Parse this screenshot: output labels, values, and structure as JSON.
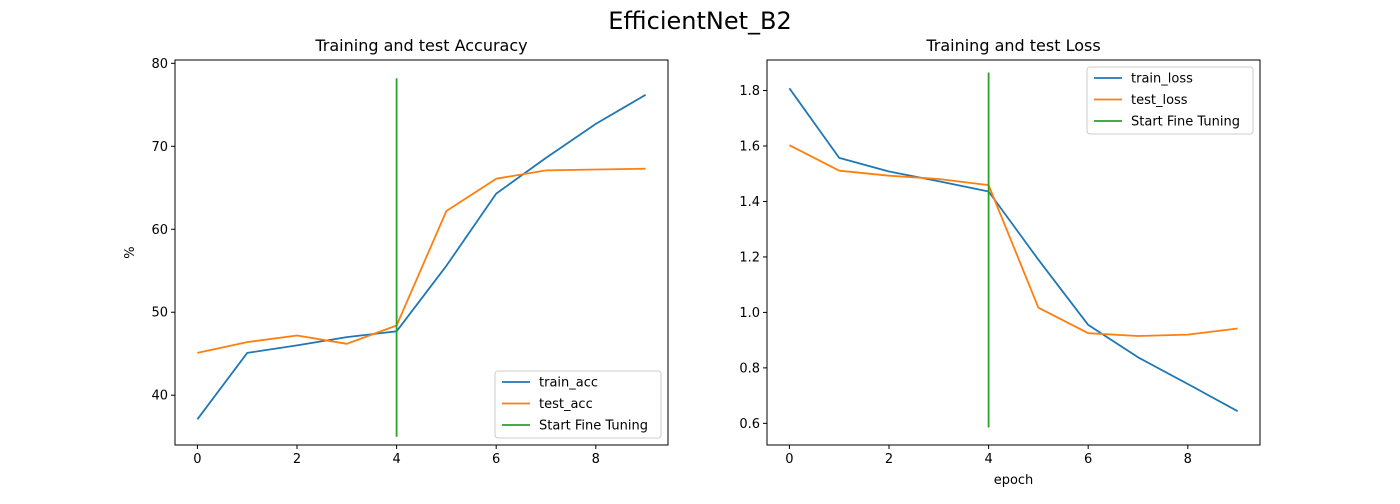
{
  "figure_title": "EfficientNet_B2",
  "colors": {
    "train": "#1f77b4",
    "test": "#ff7f0e",
    "fine_tune": "#2ca02c",
    "axes": "#000000",
    "legend_border": "#cccccc"
  },
  "chart_data": [
    {
      "type": "line",
      "title": "Training and test Accuracy",
      "xlabel": "",
      "ylabel": "%",
      "xlim": [
        -0.45,
        9.45
      ],
      "ylim": [
        34.0,
        80.4
      ],
      "xticks": [
        0,
        2,
        4,
        6,
        8
      ],
      "yticks": [
        40,
        50,
        60,
        70,
        80
      ],
      "grid": false,
      "legend_position": "lower-right",
      "x": [
        0,
        1,
        2,
        3,
        4,
        5,
        6,
        7,
        8,
        9
      ],
      "series": [
        {
          "name": "train_acc",
          "color_key": "train",
          "values": [
            37.1,
            45.1,
            46.0,
            47.0,
            47.7,
            55.6,
            64.3,
            68.6,
            72.7,
            76.2
          ]
        },
        {
          "name": "test_acc",
          "color_key": "test",
          "values": [
            45.1,
            46.4,
            47.2,
            46.2,
            48.4,
            62.2,
            66.1,
            67.1,
            67.2,
            67.3
          ]
        }
      ],
      "vline": {
        "name": "Start Fine Tuning",
        "color_key": "fine_tune",
        "x": 4,
        "y": [
          35.0,
          78.2
        ]
      }
    },
    {
      "type": "line",
      "title": "Training and test Loss",
      "xlabel": "epoch",
      "ylabel": "",
      "xlim": [
        -0.45,
        9.45
      ],
      "ylim": [
        0.522,
        1.91
      ],
      "xticks": [
        0,
        2,
        4,
        6,
        8
      ],
      "yticks": [
        0.6,
        0.8,
        1.0,
        1.2,
        1.4,
        1.6,
        1.8
      ],
      "grid": false,
      "legend_position": "upper-right",
      "x": [
        0,
        1,
        2,
        3,
        4,
        5,
        6,
        7,
        8,
        9
      ],
      "series": [
        {
          "name": "train_loss",
          "color_key": "train",
          "values": [
            1.808,
            1.557,
            1.508,
            1.473,
            1.436,
            1.19,
            0.955,
            0.838,
            0.742,
            0.644
          ]
        },
        {
          "name": "test_loss",
          "color_key": "test",
          "values": [
            1.603,
            1.511,
            1.493,
            1.481,
            1.459,
            1.017,
            0.925,
            0.915,
            0.92,
            0.942
          ]
        }
      ],
      "vline": {
        "name": "Start Fine Tuning",
        "color_key": "fine_tune",
        "x": 4,
        "y": [
          0.585,
          1.865
        ]
      }
    }
  ]
}
